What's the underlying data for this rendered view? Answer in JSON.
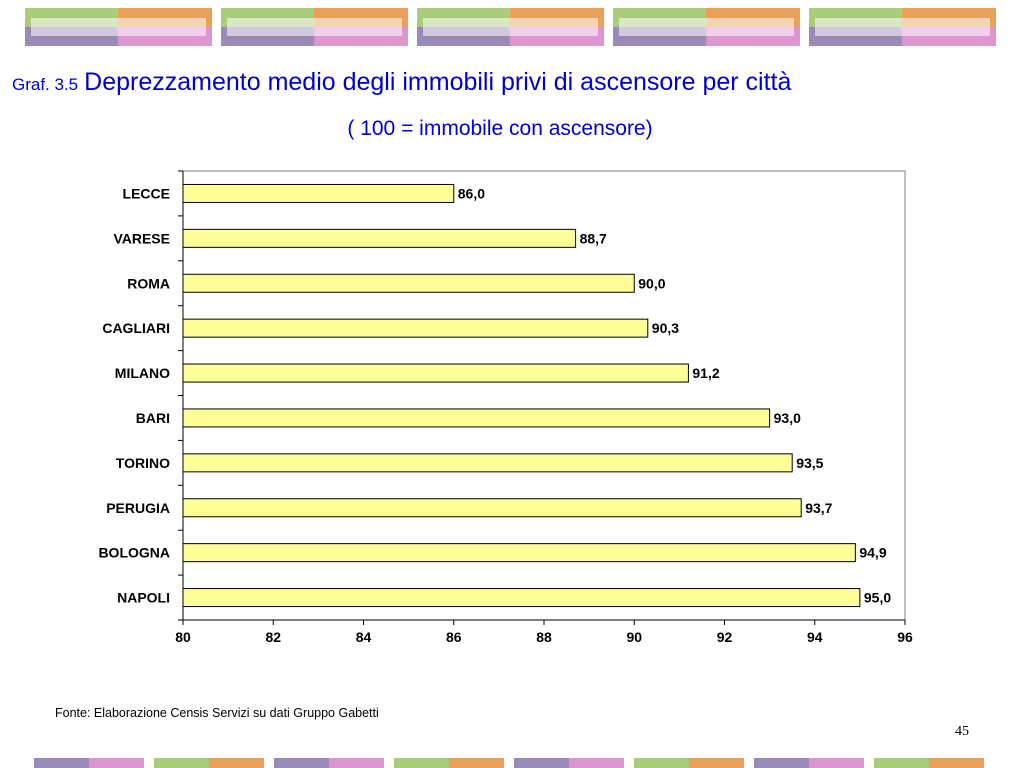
{
  "header": {
    "prefix": "Graf. 3.5",
    "title": "Deprezzamento medio degli immobili privi di ascensore per città",
    "subtitle": "( 100 = immobile con ascensore)"
  },
  "colors": {
    "title": "#0000cc",
    "bar_fill": "#ffff99",
    "bar_stroke": "#000000",
    "deco_green": "#a9cc7a",
    "deco_orange": "#e9a15a",
    "deco_purple": "#9a8ab8",
    "deco_pink": "#dc95cf"
  },
  "chart_data": {
    "type": "bar",
    "orientation": "horizontal",
    "categories": [
      "LECCE",
      "VARESE",
      "ROMA",
      "CAGLIARI",
      "MILANO",
      "BARI",
      "TORINO",
      "PERUGIA",
      "BOLOGNA",
      "NAPOLI"
    ],
    "values": [
      86.0,
      88.7,
      90.0,
      90.3,
      91.2,
      93.0,
      93.5,
      93.7,
      94.9,
      95.0
    ],
    "value_labels": [
      "86,0",
      "88,7",
      "90,0",
      "90,3",
      "91,2",
      "93,0",
      "93,5",
      "93,7",
      "94,9",
      "95,0"
    ],
    "xlim": [
      80,
      96
    ],
    "xticks": [
      80,
      82,
      84,
      86,
      88,
      90,
      92,
      94,
      96
    ],
    "grid": false,
    "legend": "none"
  },
  "footer": {
    "source": "Fonte: Elaborazione Censis Servizi su dati  Gruppo Gabetti",
    "page_number": "45"
  }
}
